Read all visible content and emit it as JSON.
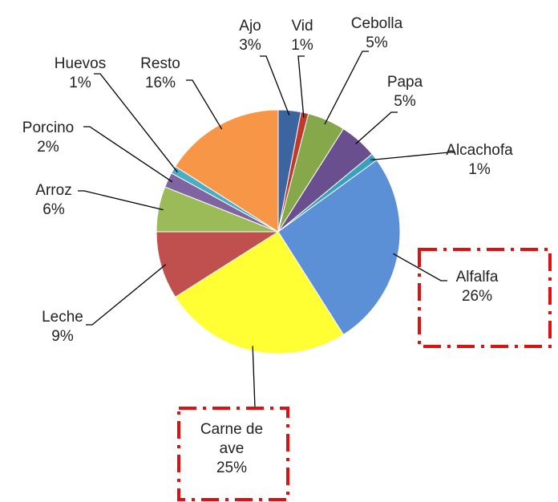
{
  "chart_data": {
    "type": "pie",
    "categories": [
      "Ajo",
      "Vid",
      "Cebolla",
      "Papa",
      "Alcachofa",
      "Alfalfa",
      "Carne de ave",
      "Leche",
      "Arroz",
      "Porcino",
      "Huevos",
      "Resto"
    ],
    "values": [
      3,
      1,
      5,
      5,
      1,
      26,
      25,
      9,
      6,
      2,
      1,
      16
    ],
    "value_labels": [
      "3%",
      "1%",
      "5%",
      "5%",
      "1%",
      "26%",
      "25%",
      "9%",
      "6%",
      "2%",
      "1%",
      "16%"
    ],
    "colors": [
      "#3b64a0",
      "#c0392b",
      "#86a84a",
      "#6a4f8f",
      "#3aa0c0",
      "#5b8fd6",
      "#ffff33",
      "#c0504d",
      "#9bbb59",
      "#8064a2",
      "#4bacc6",
      "#f79646"
    ]
  }
}
